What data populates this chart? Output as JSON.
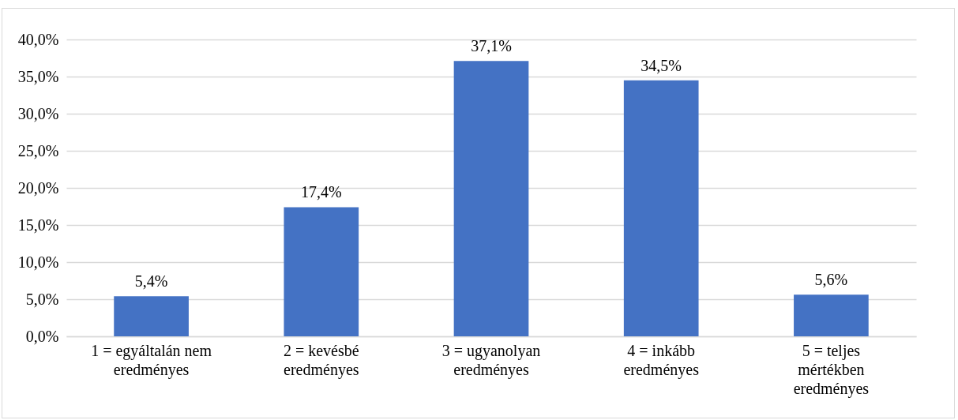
{
  "chart_data": {
    "type": "bar",
    "categories": [
      "1 = egyáltalán nem eredményes",
      "2 = kevésbé eredményes",
      "3 = ugyanolyan eredményes",
      "4 = inkább eredményes",
      "5 = teljes mértékben eredményes"
    ],
    "values": [
      5.4,
      17.4,
      37.1,
      34.5,
      5.6
    ],
    "value_labels": [
      "5,4%",
      "17,4%",
      "37,1%",
      "34,5%",
      "5,6%"
    ],
    "color": "#4472c4",
    "ylim": [
      0,
      40
    ],
    "yticks": [
      {
        "value": 0,
        "label": "0,0%"
      },
      {
        "value": 5,
        "label": "5,0%"
      },
      {
        "value": 10,
        "label": "10,0%"
      },
      {
        "value": 15,
        "label": "15,0%"
      },
      {
        "value": 20,
        "label": "20,0%"
      },
      {
        "value": 25,
        "label": "25,0%"
      },
      {
        "value": 30,
        "label": "30,0%"
      },
      {
        "value": 35,
        "label": "35,0%"
      },
      {
        "value": 40,
        "label": "40,0%"
      }
    ],
    "grid": "y"
  }
}
